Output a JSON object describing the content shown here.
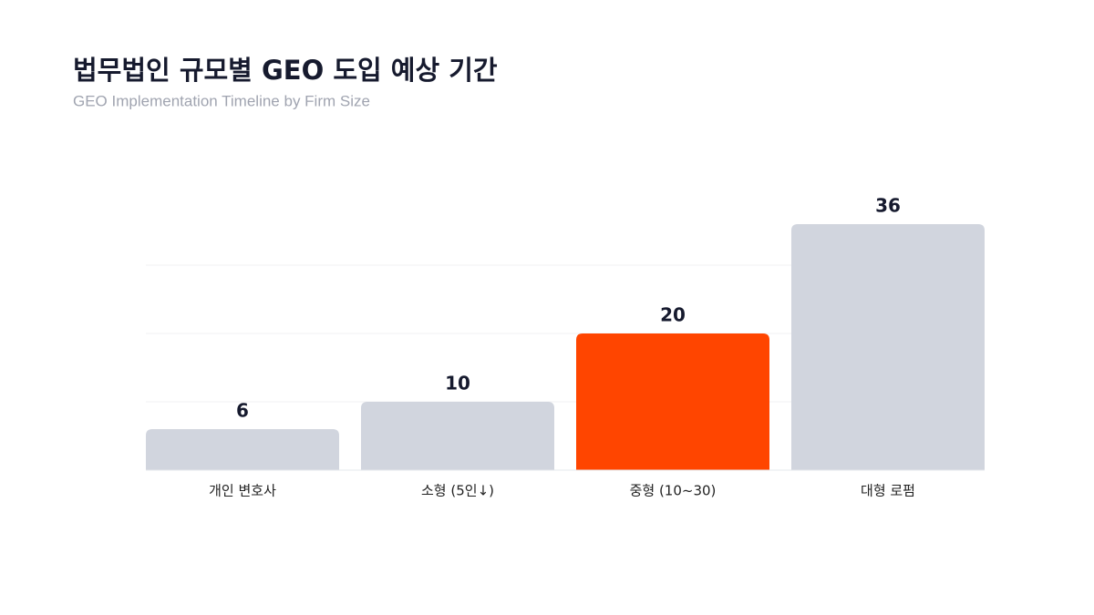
{
  "chart_data": {
    "type": "bar",
    "title": "법무법인 규모별 GEO 도입 예상 기간",
    "subtitle": "GEO Implementation Timeline by Firm Size",
    "categories": [
      "개인 변호사",
      "소형 (5인↓)",
      "중형 (10~30)",
      "대형 로펌"
    ],
    "values": [
      6,
      10,
      20,
      36
    ],
    "colors": [
      "#d1d5de",
      "#d1d5de",
      "#ff4500",
      "#d1d5de"
    ],
    "ylim": [
      0,
      40
    ],
    "yticks": [
      10,
      20,
      30
    ],
    "grid": true
  }
}
